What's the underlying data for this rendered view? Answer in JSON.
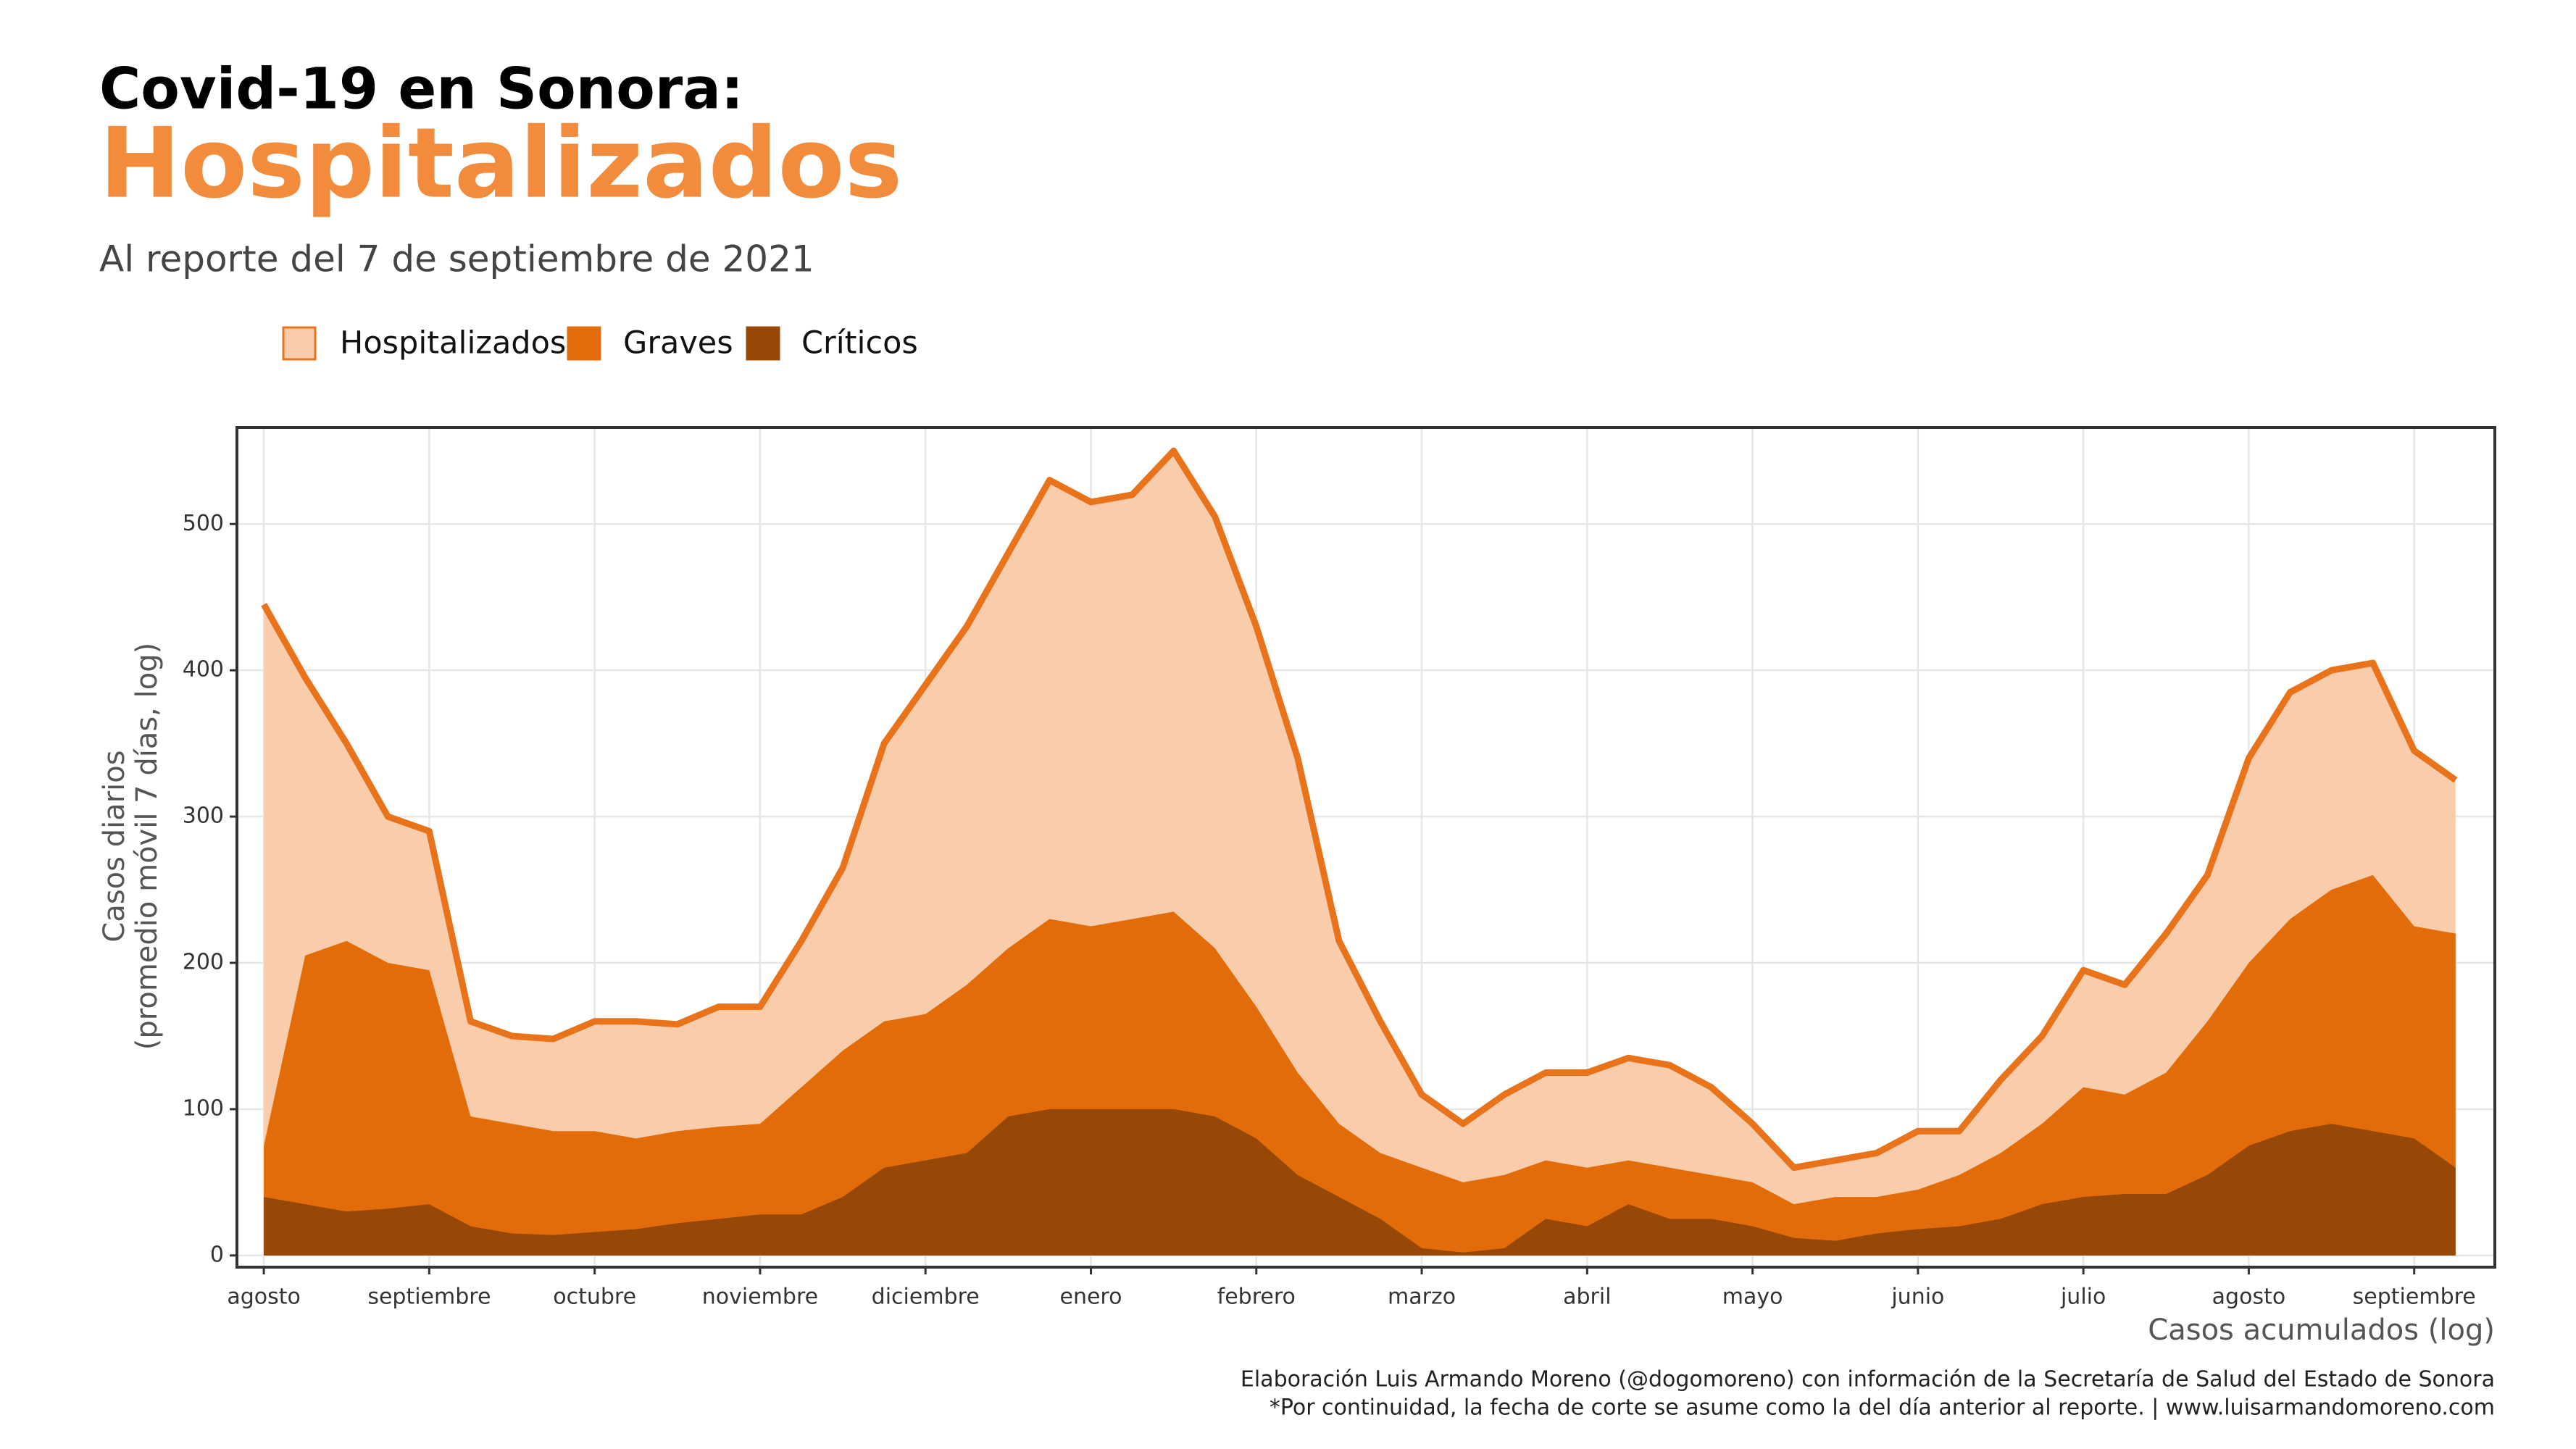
{
  "chart_data": {
    "type": "area",
    "title": "Covid-19 en Sonora:",
    "headline": "Hospitalizados",
    "subtitle": "Al reporte del 7 de septiembre de 2021",
    "y_label": [
      "Casos diarios",
      "(promedio móvil 7 días, log)"
    ],
    "x_label": "Casos acumulados (log)",
    "caption": [
      "Elaboración Luis Armando Moreno (@dogomoreno) con información de la Secretaría de Salud del Estado de Sonora",
      "*Por continuidad, la fecha de corte se asume como la del día anterior al reporte. | www.luisarmandomoreno.com"
    ],
    "categories": [
      "agosto",
      null,
      null,
      null,
      "septiembre",
      null,
      null,
      null,
      "octubre",
      null,
      null,
      null,
      "noviembre",
      null,
      null,
      null,
      "diciembre",
      null,
      null,
      null,
      "enero",
      null,
      null,
      null,
      "febrero",
      null,
      null,
      null,
      "marzo",
      null,
      null,
      null,
      "abril",
      null,
      null,
      null,
      "mayo",
      null,
      null,
      null,
      "junio",
      null,
      null,
      null,
      "julio",
      null,
      null,
      null,
      "agosto",
      null,
      null,
      null,
      "septiembre",
      null
    ],
    "series": [
      {
        "name": "Hospitalizados",
        "color": "#f9cdac",
        "line_color": "#e8731a",
        "values": [
          445,
          395,
          350,
          300,
          290,
          160,
          150,
          148,
          160,
          160,
          158,
          170,
          170,
          215,
          265,
          350,
          390,
          430,
          480,
          530,
          515,
          520,
          550,
          505,
          430,
          340,
          215,
          160,
          110,
          90,
          110,
          125,
          125,
          135,
          130,
          115,
          90,
          60,
          65,
          70,
          85,
          85,
          120,
          150,
          195,
          185,
          220,
          260,
          340,
          385,
          400,
          405,
          345,
          325
        ]
      },
      {
        "name": "Graves",
        "color": "#e36c0a",
        "values": [
          75,
          205,
          215,
          200,
          195,
          95,
          90,
          85,
          85,
          80,
          85,
          88,
          90,
          115,
          140,
          160,
          165,
          185,
          210,
          230,
          225,
          230,
          235,
          210,
          170,
          125,
          90,
          70,
          60,
          50,
          55,
          65,
          60,
          65,
          60,
          55,
          50,
          35,
          40,
          40,
          45,
          55,
          70,
          90,
          115,
          110,
          125,
          160,
          200,
          230,
          250,
          260,
          225,
          220
        ]
      },
      {
        "name": "Críticos",
        "color": "#974807",
        "values": [
          40,
          35,
          30,
          32,
          35,
          20,
          15,
          14,
          16,
          18,
          22,
          25,
          28,
          28,
          40,
          60,
          65,
          70,
          95,
          100,
          100,
          100,
          100,
          95,
          80,
          55,
          40,
          25,
          5,
          2,
          5,
          25,
          20,
          35,
          25,
          25,
          20,
          12,
          10,
          15,
          18,
          20,
          25,
          35,
          40,
          42,
          42,
          55,
          75,
          85,
          90,
          85,
          80,
          60
        ]
      }
    ],
    "ylim": [
      -8,
      566
    ],
    "yticks": [
      0,
      100,
      200,
      300,
      400,
      500
    ],
    "grid": true
  }
}
